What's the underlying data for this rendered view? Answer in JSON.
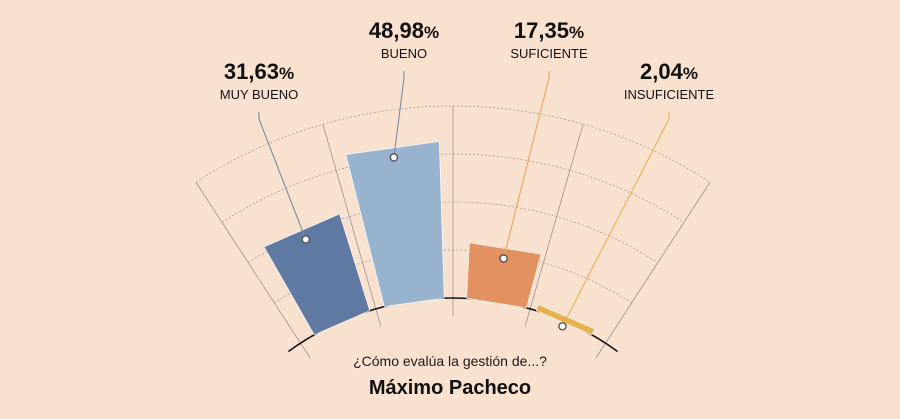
{
  "chart_data": {
    "type": "bar",
    "layout": "radial-fan",
    "grid": true,
    "categories": [
      "MUY BUENO",
      "BUENO",
      "SUFICIENTE",
      "INSUFICIENTE"
    ],
    "values": [
      31.63,
      48.98,
      17.35,
      2.04
    ],
    "value_labels": [
      "31,63",
      "48,98",
      "17,35",
      "2,04"
    ],
    "unit": "%",
    "ylim": [
      0,
      60
    ],
    "question": "¿Cómo evalúa la gestión de...?",
    "subject": "Máximo Pacheco"
  },
  "colors": {
    "background": "#f9e1cf",
    "bars": [
      "#5f79a3",
      "#98b3ce",
      "#e39160",
      "#e8b14f"
    ],
    "leaders": [
      "#7a8aa0",
      "#7a8aa0",
      "#e4a85e",
      "#e8b24e"
    ],
    "grid": "#9a948e",
    "baseline": "#111111"
  }
}
